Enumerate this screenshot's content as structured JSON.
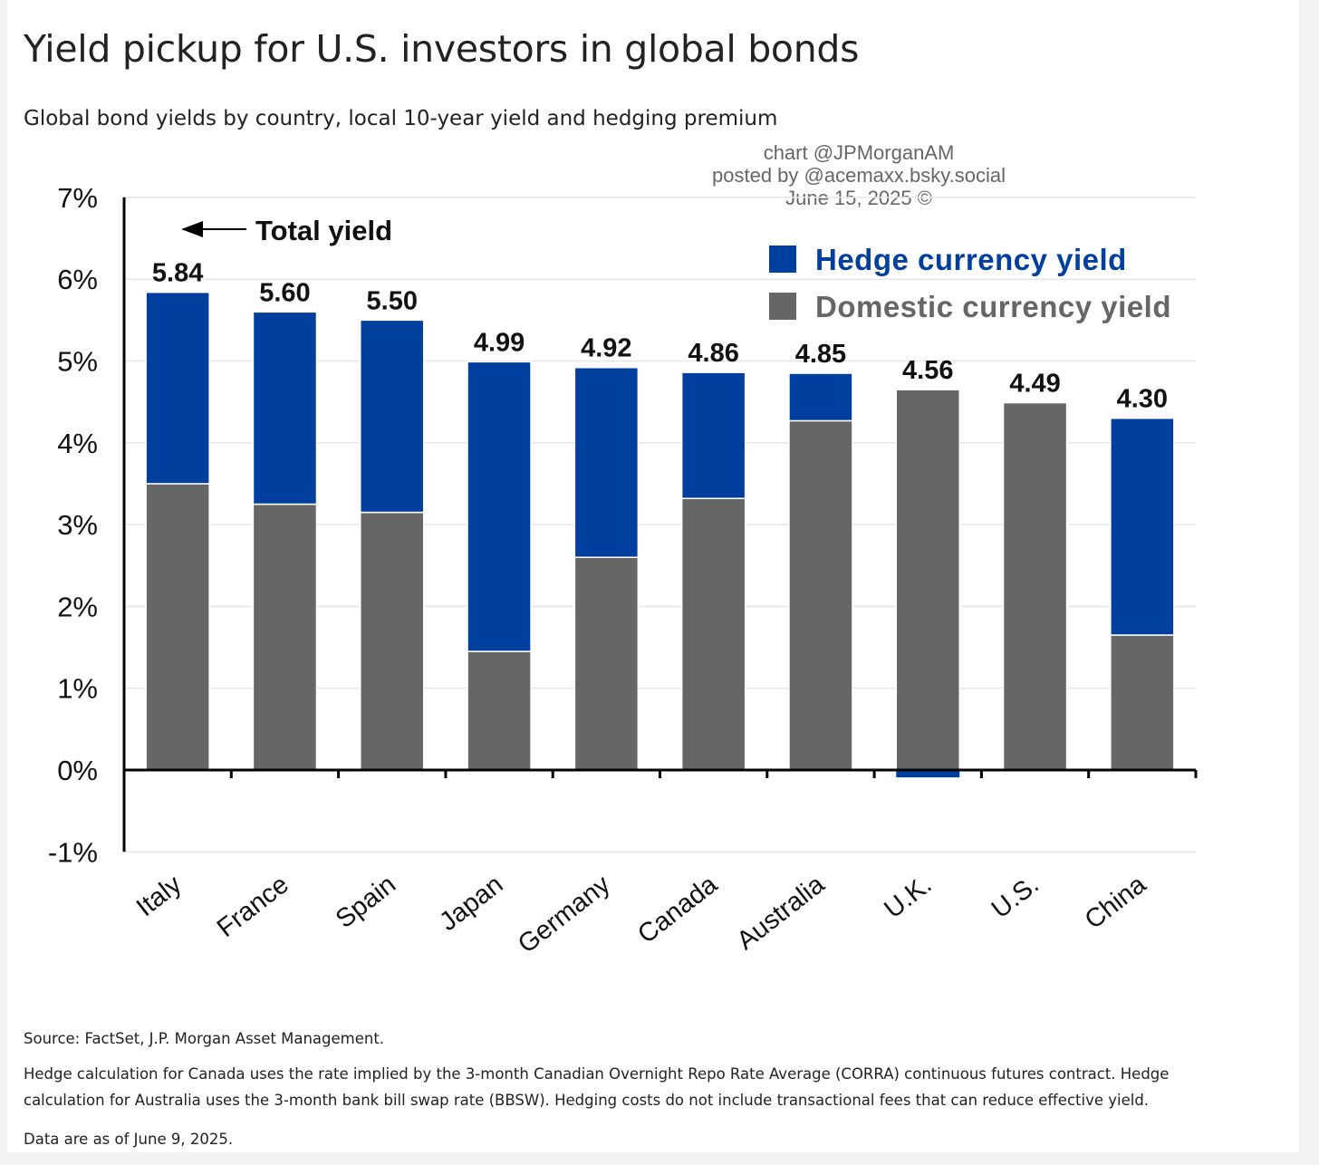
{
  "header": {
    "title": "Yield pickup for U.S. investors in global bonds",
    "subtitle": "Global bond yields by country, local 10-year yield and hedging premium"
  },
  "watermark": {
    "line1": "chart @JPMorganAM",
    "line2": "posted by @acemaxx.bsky.social",
    "line3": "June 15, 2025 ©"
  },
  "chart_data": {
    "type": "bar",
    "stacked": true,
    "categories": [
      "Italy",
      "France",
      "Spain",
      "Japan",
      "Germany",
      "Canada",
      "Australia",
      "U.K.",
      "U.S.",
      "China"
    ],
    "series": [
      {
        "name": "Domestic currency yield",
        "color": "#666666",
        "values": [
          3.5,
          3.25,
          3.15,
          1.45,
          2.6,
          3.32,
          4.27,
          4.65,
          4.49,
          1.65
        ]
      },
      {
        "name": "Hedge currency yield",
        "color": "#003f9e",
        "values": [
          2.34,
          2.35,
          2.35,
          3.54,
          2.32,
          1.54,
          0.58,
          -0.09,
          0,
          2.65
        ]
      }
    ],
    "totals": [
      "5.84",
      "5.60",
      "5.50",
      "4.99",
      "4.92",
      "4.86",
      "4.85",
      "4.56",
      "4.49",
      "4.30"
    ],
    "yticks": [
      "7%",
      "6%",
      "5%",
      "4%",
      "3%",
      "2%",
      "1%",
      "0%",
      "-1%"
    ],
    "ylim": [
      -1,
      7
    ],
    "grid": true,
    "legend_position": "top-right",
    "annotation": "Total yield",
    "xlabel": "",
    "ylabel": ""
  },
  "notes": {
    "source": "Source: FactSet, J.P. Morgan Asset Management.",
    "hedge_note": "Hedge calculation for Canada uses the rate implied by the 3-month Canadian Overnight Repo Rate Average (CORRA) continuous futures contract. Hedge calculation for Australia uses the 3-month bank bill swap rate (BBSW). Hedging costs do not include transactional fees that can reduce effective yield.",
    "data_date": "Data are as of June 9, 2025."
  }
}
